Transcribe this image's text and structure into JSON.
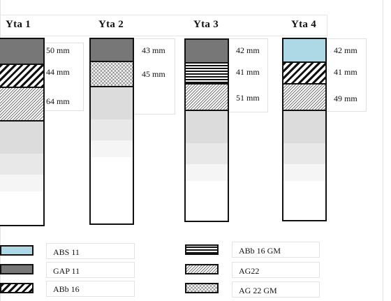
{
  "columns": [
    {
      "title": "Yta 1",
      "layers": [
        {
          "material": "GAP 11",
          "thickness_mm": 50,
          "label": "50 mm"
        },
        {
          "material": "ABb 16",
          "thickness_mm": 44,
          "label": "44 mm"
        },
        {
          "material": "AG22",
          "thickness_mm": 64,
          "label": "64 mm"
        }
      ]
    },
    {
      "title": "Yta 2",
      "layers": [
        {
          "material": "GAP 11",
          "thickness_mm": 43,
          "label": "43 mm"
        },
        {
          "material": "AG 22 GM",
          "thickness_mm": 45,
          "label": "45 mm"
        }
      ]
    },
    {
      "title": "Yta 3",
      "layers": [
        {
          "material": "GAP 11",
          "thickness_mm": 42,
          "label": "42 mm"
        },
        {
          "material": "ABb 16 GM",
          "thickness_mm": 41,
          "label": "41 mm"
        },
        {
          "material": "AG22",
          "thickness_mm": 51,
          "label": "51 mm"
        }
      ]
    },
    {
      "title": "Yta 4",
      "layers": [
        {
          "material": "ABS 11",
          "thickness_mm": 42,
          "label": "42 mm"
        },
        {
          "material": "ABb 16",
          "thickness_mm": 41,
          "label": "41 mm"
        },
        {
          "material": "AG22",
          "thickness_mm": 49,
          "label": "49 mm"
        }
      ]
    }
  ],
  "legend": [
    {
      "name": "ABS 11",
      "pattern": "light-blue-solid",
      "color": "#add8e6"
    },
    {
      "name": "GAP 11",
      "pattern": "grey-solid",
      "color": "#777777"
    },
    {
      "name": "ABb 16",
      "pattern": "diagonal-hatch"
    },
    {
      "name": "ABb 16 GM",
      "pattern": "horizontal-stripes"
    },
    {
      "name": "AG22",
      "pattern": "fine-diagonal-hatch"
    },
    {
      "name": "AG 22 GM",
      "pattern": "dotted-grey"
    }
  ]
}
